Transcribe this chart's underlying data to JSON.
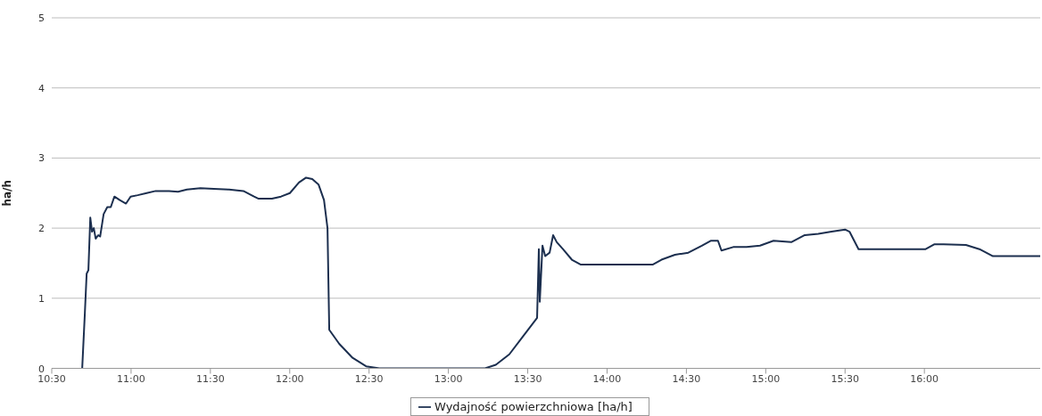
{
  "chart_data": {
    "type": "line",
    "ylabel": "ha/h",
    "x": [
      10.692,
      10.709,
      10.72,
      10.731,
      10.743,
      10.754,
      10.765,
      10.777,
      10.793,
      10.805,
      10.827,
      10.85,
      10.872,
      10.895,
      10.929,
      10.968,
      10.997,
      11.042,
      11.098,
      11.155,
      11.239,
      11.296,
      11.352,
      11.437,
      11.521,
      11.617,
      11.708,
      11.775,
      11.804,
      11.888,
      11.945,
      12.001,
      12.058,
      12.103,
      12.142,
      12.182,
      12.216,
      12.227,
      12.238,
      12.249,
      12.312,
      12.396,
      12.481,
      12.565,
      13.231,
      13.299,
      13.384,
      13.468,
      13.559,
      13.57,
      13.576,
      13.593,
      13.61,
      13.638,
      13.66,
      13.683,
      13.722,
      13.778,
      13.835,
      14.089,
      14.287,
      14.343,
      14.428,
      14.512,
      14.597,
      14.653,
      14.699,
      14.721,
      14.795,
      14.879,
      14.964,
      15.049,
      15.161,
      15.246,
      15.331,
      15.415,
      15.5,
      15.528,
      15.585,
      15.782,
      16.008,
      16.064,
      16.121,
      16.262,
      16.347,
      16.432,
      16.488,
      16.73
    ],
    "series": [
      {
        "name": "Wydajność powierzchniowa [ha/h]",
        "color": "#1c2f4f",
        "values": [
          0,
          0.8,
          1.35,
          1.4,
          2.15,
          1.95,
          2.0,
          1.85,
          1.9,
          1.88,
          2.2,
          2.3,
          2.3,
          2.45,
          2.4,
          2.35,
          2.45,
          2.47,
          2.5,
          2.53,
          2.53,
          2.52,
          2.55,
          2.57,
          2.56,
          2.55,
          2.53,
          2.45,
          2.42,
          2.42,
          2.45,
          2.5,
          2.65,
          2.72,
          2.7,
          2.62,
          2.4,
          2.2,
          2.0,
          0.55,
          0.35,
          0.15,
          0.03,
          0,
          0,
          0.05,
          0.2,
          0.45,
          0.72,
          1.7,
          0.95,
          1.75,
          1.6,
          1.65,
          1.9,
          1.8,
          1.7,
          1.55,
          1.48,
          1.48,
          1.48,
          1.55,
          1.62,
          1.65,
          1.75,
          1.82,
          1.82,
          1.68,
          1.73,
          1.73,
          1.75,
          1.82,
          1.8,
          1.9,
          1.92,
          1.95,
          1.98,
          1.95,
          1.7,
          1.7,
          1.7,
          1.77,
          1.77,
          1.76,
          1.7,
          1.6,
          1.6,
          1.6
        ]
      }
    ],
    "xlim": [
      10.5,
      16.73
    ],
    "xticks": [
      {
        "value": 10.5,
        "label": "10:30"
      },
      {
        "value": 11,
        "label": "11:00"
      },
      {
        "value": 11.5,
        "label": "11:30"
      },
      {
        "value": 12,
        "label": "12:00"
      },
      {
        "value": 12.5,
        "label": "12:30"
      },
      {
        "value": 13,
        "label": "13:00"
      },
      {
        "value": 13.5,
        "label": "13:30"
      },
      {
        "value": 14,
        "label": "14:00"
      },
      {
        "value": 14.5,
        "label": "14:30"
      },
      {
        "value": 15,
        "label": "15:00"
      },
      {
        "value": 15.5,
        "label": "15:30"
      },
      {
        "value": 16,
        "label": "16:00"
      }
    ],
    "ylim": [
      0,
      5
    ],
    "yticks": [
      0,
      1,
      2,
      3,
      4,
      5
    ],
    "grid": "y",
    "legend": "bottom",
    "marker": "none",
    "line_style": "solid"
  }
}
